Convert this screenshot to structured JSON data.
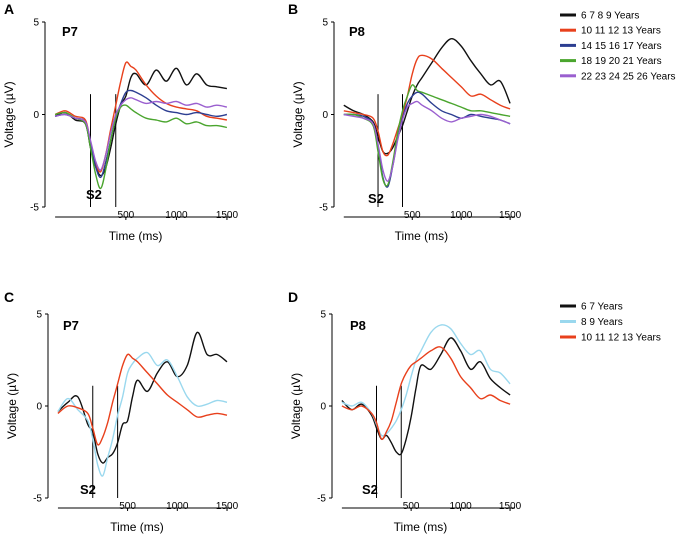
{
  "figure": {
    "legend_top": [
      {
        "label": "6 7 8 9 Years",
        "color": "#111111"
      },
      {
        "label": "10 11 12 13  Years",
        "color": "#e8401c"
      },
      {
        "label": "14 15 16 17  Years",
        "color": "#2c3e91"
      },
      {
        "label": "18 19 20 21   Years",
        "color": "#4aa52e"
      },
      {
        "label": "22 23 24 25 26  Years",
        "color": "#9a5fcf"
      }
    ],
    "legend_bottom": [
      {
        "label": "6 7 Years",
        "color": "#111111"
      },
      {
        "label": "8 9 Years",
        "color": "#9ad8ee"
      },
      {
        "label": "10 11 12 13  Years",
        "color": "#e8401c"
      }
    ]
  },
  "chart_data": [
    {
      "type": "line",
      "panel": "A",
      "electrode": "P7",
      "marker": "S2",
      "xlabel": "Time   (ms)",
      "ylabel": "Voltage   (µV)",
      "xlim": [
        -300,
        1550
      ],
      "ylim": [
        -5,
        5
      ],
      "xticks": [
        500,
        1000,
        1500
      ],
      "yticks": [
        -5,
        0,
        5
      ],
      "ytick_labels": [
        "-5",
        "0",
        "5"
      ],
      "vlines": [
        150,
        400
      ],
      "x": [
        -200,
        -100,
        0,
        100,
        150,
        200,
        250,
        300,
        350,
        400,
        450,
        500,
        550,
        600,
        700,
        800,
        900,
        1000,
        1100,
        1200,
        1300,
        1400,
        1500
      ],
      "series": [
        {
          "name": "6 7 8 9 Years",
          "color": "#111111",
          "values": [
            -0.1,
            0.1,
            -0.3,
            -0.5,
            -1.8,
            -2.8,
            -3.3,
            -2.9,
            -1.8,
            -0.5,
            0.5,
            1.0,
            2.0,
            2.2,
            1.6,
            2.4,
            1.8,
            2.5,
            1.6,
            2.2,
            1.6,
            1.5,
            1.4
          ]
        },
        {
          "name": "10 11 12 13  Years",
          "color": "#e8401c",
          "values": [
            0.0,
            0.2,
            -0.1,
            -0.3,
            -1.5,
            -2.6,
            -3.1,
            -2.2,
            -0.8,
            0.5,
            1.8,
            2.8,
            2.6,
            2.4,
            1.6,
            1.0,
            0.6,
            0.4,
            0.3,
            0.2,
            -0.1,
            -0.2,
            -0.3
          ]
        },
        {
          "name": "14 15 16 17  Years",
          "color": "#2c3e91",
          "values": [
            -0.1,
            0.0,
            -0.2,
            -0.4,
            -1.6,
            -2.8,
            -3.4,
            -2.6,
            -1.4,
            -0.2,
            0.6,
            1.2,
            1.3,
            1.2,
            0.9,
            0.5,
            0.2,
            0.1,
            0.0,
            0.1,
            0.0,
            -0.1,
            0.0
          ]
        },
        {
          "name": "18 19 20 21   Years",
          "color": "#4aa52e",
          "values": [
            0.0,
            0.1,
            -0.2,
            -0.5,
            -1.8,
            -3.2,
            -4.0,
            -3.0,
            -1.4,
            -0.2,
            0.4,
            0.5,
            0.3,
            0.1,
            -0.2,
            -0.3,
            -0.4,
            -0.2,
            -0.5,
            -0.4,
            -0.6,
            -0.6,
            -0.7
          ]
        },
        {
          "name": "22 23 24 25 26  Years",
          "color": "#9a5fcf",
          "values": [
            -0.1,
            0.0,
            -0.2,
            -0.4,
            -1.4,
            -2.5,
            -3.0,
            -2.2,
            -1.0,
            0.0,
            0.5,
            0.8,
            0.9,
            0.8,
            0.6,
            0.7,
            0.6,
            0.7,
            0.5,
            0.6,
            0.4,
            0.5,
            0.4
          ]
        }
      ]
    },
    {
      "type": "line",
      "panel": "B",
      "electrode": "P8",
      "marker": "S2",
      "xlabel": "Time   (ms)",
      "ylabel": "Voltage   (µV)",
      "xlim": [
        -300,
        1550
      ],
      "ylim": [
        -5,
        5
      ],
      "xticks": [
        500,
        1000,
        1500
      ],
      "yticks": [
        -5,
        0,
        5
      ],
      "ytick_labels": [
        "-5",
        "0",
        "5"
      ],
      "vlines": [
        150,
        400
      ],
      "x": [
        -200,
        -100,
        0,
        100,
        150,
        200,
        250,
        300,
        350,
        400,
        450,
        500,
        550,
        600,
        700,
        800,
        900,
        1000,
        1100,
        1200,
        1300,
        1400,
        1500
      ],
      "series": [
        {
          "name": "6 7 8 9 Years",
          "color": "#111111",
          "values": [
            0.5,
            0.2,
            0.0,
            -0.4,
            -1.2,
            -2.0,
            -2.1,
            -1.8,
            -1.2,
            -0.6,
            0.2,
            1.0,
            1.6,
            2.0,
            2.8,
            3.6,
            4.1,
            3.7,
            2.9,
            2.2,
            1.6,
            1.8,
            0.6
          ]
        },
        {
          "name": "10 11 12 13  Years",
          "color": "#e8401c",
          "values": [
            0.2,
            0.1,
            0.0,
            -0.2,
            -0.9,
            -2.0,
            -2.2,
            -1.6,
            -0.8,
            0.0,
            1.0,
            2.2,
            3.0,
            3.2,
            3.0,
            2.5,
            2.0,
            1.5,
            1.0,
            1.1,
            0.8,
            0.5,
            0.3
          ]
        },
        {
          "name": "14 15 16 17  Years",
          "color": "#2c3e91",
          "values": [
            0.0,
            0.0,
            -0.1,
            -0.5,
            -1.8,
            -3.4,
            -3.9,
            -2.8,
            -1.3,
            -0.2,
            0.6,
            1.0,
            1.2,
            1.1,
            0.6,
            0.2,
            0.0,
            -0.2,
            0.0,
            -0.1,
            -0.2,
            -0.3,
            -0.5
          ]
        },
        {
          "name": "18 19 20 21   Years",
          "color": "#4aa52e",
          "values": [
            0.0,
            0.0,
            -0.2,
            -0.6,
            -2.0,
            -3.5,
            -3.8,
            -2.6,
            -1.0,
            0.2,
            1.0,
            1.6,
            1.3,
            1.2,
            1.0,
            0.8,
            0.6,
            0.4,
            0.2,
            0.2,
            0.1,
            0.0,
            -0.1
          ]
        },
        {
          "name": "22 23 24 25 26  Years",
          "color": "#9a5fcf",
          "values": [
            0.0,
            -0.1,
            -0.2,
            -0.5,
            -1.6,
            -3.0,
            -3.6,
            -2.8,
            -1.4,
            -0.3,
            0.4,
            0.6,
            0.7,
            0.5,
            0.2,
            -0.2,
            -0.4,
            -0.2,
            -0.1,
            0.0,
            -0.1,
            -0.3,
            -0.5
          ]
        }
      ]
    },
    {
      "type": "line",
      "panel": "C",
      "electrode": "P7",
      "marker": "S2",
      "xlabel": "Time   (ms)",
      "ylabel": "Voltage   (µV)",
      "xlim": [
        -300,
        1550
      ],
      "ylim": [
        -5,
        5
      ],
      "xticks": [
        500,
        1000,
        1500
      ],
      "yticks": [
        -5,
        0,
        5
      ],
      "ytick_labels": [
        "-5",
        "0",
        "5"
      ],
      "vlines": [
        150,
        400
      ],
      "x": [
        -200,
        -100,
        0,
        100,
        150,
        200,
        250,
        300,
        350,
        400,
        450,
        500,
        550,
        600,
        700,
        800,
        900,
        1000,
        1100,
        1200,
        1300,
        1400,
        1500
      ],
      "series": [
        {
          "name": "6 7 Years",
          "color": "#111111",
          "values": [
            -0.3,
            0.2,
            0.5,
            -1.0,
            -1.4,
            -2.6,
            -3.1,
            -2.8,
            -2.6,
            -2.0,
            -1.0,
            -0.8,
            0.5,
            1.4,
            0.8,
            1.8,
            2.4,
            1.6,
            2.2,
            4.0,
            2.8,
            2.8,
            2.4
          ]
        },
        {
          "name": "8 9 Years",
          "color": "#9ad8ee",
          "values": [
            -0.3,
            0.4,
            -0.2,
            -0.8,
            -1.8,
            -3.2,
            -3.8,
            -2.8,
            -1.8,
            -0.5,
            0.5,
            1.8,
            2.3,
            2.6,
            2.9,
            2.2,
            2.5,
            1.6,
            0.5,
            0.0,
            0.1,
            0.3,
            0.2
          ]
        },
        {
          "name": "10 11 12 13  Years",
          "color": "#e8401c",
          "values": [
            -0.4,
            0.0,
            -0.1,
            -0.4,
            -1.2,
            -2.1,
            -1.7,
            -0.9,
            0.2,
            1.2,
            2.2,
            2.8,
            2.6,
            2.4,
            1.8,
            1.2,
            0.6,
            0.2,
            -0.2,
            -0.6,
            -0.5,
            -0.4,
            -0.5
          ]
        }
      ]
    },
    {
      "type": "line",
      "panel": "D",
      "electrode": "P8",
      "marker": "S2",
      "xlabel": "Time   (ms)",
      "ylabel": "Voltage   (µV)",
      "xlim": [
        -300,
        1550
      ],
      "ylim": [
        -5,
        5
      ],
      "xticks": [
        500,
        1000,
        1500
      ],
      "yticks": [
        -5,
        0,
        5
      ],
      "ytick_labels": [
        "-5",
        "0",
        "5"
      ],
      "vlines": [
        150,
        400
      ],
      "x": [
        -200,
        -100,
        0,
        100,
        150,
        200,
        250,
        300,
        350,
        400,
        450,
        500,
        550,
        600,
        700,
        800,
        900,
        1000,
        1100,
        1200,
        1300,
        1400,
        1500
      ],
      "series": [
        {
          "name": "6 7 Years",
          "color": "#111111",
          "values": [
            0.3,
            -0.2,
            0.1,
            -0.5,
            -1.2,
            -1.8,
            -1.6,
            -2.0,
            -2.5,
            -2.6,
            -1.8,
            -0.6,
            1.0,
            2.2,
            2.0,
            2.8,
            3.7,
            3.0,
            2.0,
            2.4,
            1.5,
            1.0,
            0.6
          ]
        },
        {
          "name": "8 9 Years",
          "color": "#9ad8ee",
          "values": [
            0.2,
            0.0,
            0.2,
            -0.4,
            -1.0,
            -1.6,
            -1.5,
            -1.2,
            -0.8,
            -0.2,
            0.6,
            1.6,
            2.5,
            3.0,
            4.0,
            4.4,
            4.2,
            3.4,
            2.8,
            3.0,
            2.0,
            1.8,
            1.2
          ]
        },
        {
          "name": "10 11 12 13  Years",
          "color": "#e8401c",
          "values": [
            0.0,
            -0.2,
            0.0,
            -0.4,
            -0.9,
            -1.8,
            -1.4,
            -0.8,
            0.2,
            1.2,
            1.8,
            2.2,
            2.4,
            2.6,
            3.0,
            3.2,
            2.6,
            1.6,
            1.0,
            0.4,
            0.6,
            0.3,
            0.1
          ]
        }
      ]
    }
  ]
}
